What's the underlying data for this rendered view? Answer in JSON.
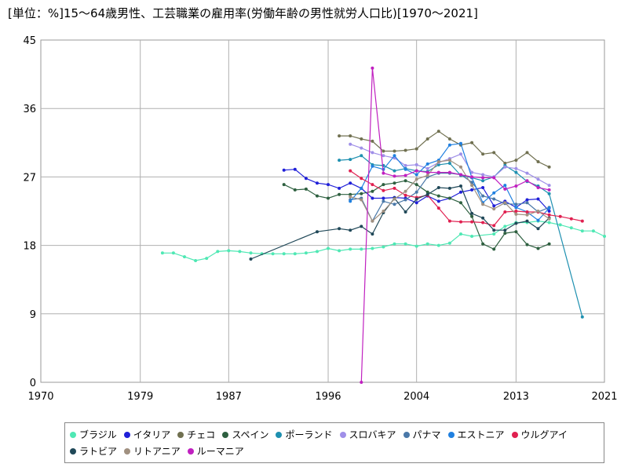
{
  "chart_data": {
    "type": "line",
    "title": "[単位：%]15～64歳男性、工芸職業の雇用率(労働年齢の男性就労人口比)[1970～2021]",
    "xlabel": "",
    "ylabel": "",
    "xlim": [
      1970,
      2021
    ],
    "ylim": [
      0,
      45
    ],
    "x_ticks": [
      "1970",
      "1979",
      "1987",
      "1996",
      "2004",
      "2013",
      "2021"
    ],
    "y_ticks": [
      "0",
      "9",
      "18",
      "27",
      "36",
      "45"
    ],
    "grid": true,
    "legend_position": "bottom",
    "series": [
      {
        "name": "ブラジル",
        "color": "#4fe8b4",
        "points": [
          [
            1981,
            17.0
          ],
          [
            1982,
            17.0
          ],
          [
            1983,
            16.5
          ],
          [
            1984,
            16.0
          ],
          [
            1985,
            16.3
          ],
          [
            1986,
            17.2
          ],
          [
            1987,
            17.3
          ],
          [
            1988,
            17.2
          ],
          [
            1989,
            17.0
          ],
          [
            1990,
            16.9
          ],
          [
            1991,
            16.9
          ],
          [
            1992,
            16.9
          ],
          [
            1993,
            16.9
          ],
          [
            1994,
            17.0
          ],
          [
            1995,
            17.2
          ],
          [
            1996,
            17.6
          ],
          [
            1997,
            17.3
          ],
          [
            1998,
            17.5
          ],
          [
            1999,
            17.5
          ],
          [
            2000,
            17.6
          ],
          [
            2001,
            17.8
          ],
          [
            2002,
            18.2
          ],
          [
            2003,
            18.2
          ],
          [
            2004,
            17.9
          ],
          [
            2005,
            18.2
          ],
          [
            2006,
            18.0
          ],
          [
            2007,
            18.3
          ],
          [
            2008,
            19.5
          ],
          [
            2009,
            19.2
          ],
          [
            2011,
            19.5
          ],
          [
            2012,
            20.5
          ],
          [
            2013,
            21.0
          ],
          [
            2014,
            21.0
          ],
          [
            2015,
            21.2
          ],
          [
            2016,
            21.0
          ],
          [
            2017,
            20.7
          ],
          [
            2018,
            20.3
          ],
          [
            2019,
            19.9
          ],
          [
            2020,
            19.9
          ],
          [
            2021,
            19.2
          ]
        ]
      },
      {
        "name": "イタリア",
        "color": "#2020d8",
        "points": [
          [
            1992,
            27.9
          ],
          [
            1993,
            28.0
          ],
          [
            1994,
            26.8
          ],
          [
            1995,
            26.2
          ],
          [
            1996,
            26.0
          ],
          [
            1997,
            25.5
          ],
          [
            1998,
            26.2
          ],
          [
            1999,
            25.5
          ],
          [
            2000,
            24.2
          ],
          [
            2001,
            24.2
          ],
          [
            2002,
            24.3
          ],
          [
            2003,
            24.2
          ],
          [
            2004,
            23.6
          ],
          [
            2005,
            24.5
          ],
          [
            2006,
            23.8
          ],
          [
            2007,
            24.2
          ],
          [
            2008,
            25.0
          ],
          [
            2009,
            25.3
          ],
          [
            2010,
            25.6
          ],
          [
            2011,
            23.2
          ],
          [
            2012,
            23.8
          ],
          [
            2013,
            23.0
          ],
          [
            2014,
            24.0
          ],
          [
            2015,
            24.1
          ],
          [
            2016,
            22.5
          ]
        ]
      },
      {
        "name": "チェコ",
        "color": "#707050",
        "points": [
          [
            1997,
            32.4
          ],
          [
            1998,
            32.4
          ],
          [
            1999,
            32.0
          ],
          [
            2000,
            31.7
          ],
          [
            2001,
            30.4
          ],
          [
            2002,
            30.4
          ],
          [
            2003,
            30.5
          ],
          [
            2004,
            30.7
          ],
          [
            2005,
            32.0
          ],
          [
            2006,
            33.0
          ],
          [
            2007,
            32.0
          ],
          [
            2008,
            31.2
          ],
          [
            2009,
            31.5
          ],
          [
            2010,
            30.0
          ],
          [
            2011,
            30.2
          ],
          [
            2012,
            28.8
          ],
          [
            2013,
            29.2
          ],
          [
            2014,
            30.2
          ],
          [
            2015,
            29.0
          ],
          [
            2016,
            28.3
          ]
        ]
      },
      {
        "name": "スペイン",
        "color": "#2e6040",
        "points": [
          [
            1992,
            26.0
          ],
          [
            1993,
            25.3
          ],
          [
            1994,
            25.4
          ],
          [
            1995,
            24.5
          ],
          [
            1996,
            24.2
          ],
          [
            1997,
            24.7
          ],
          [
            1998,
            24.7
          ],
          [
            1999,
            24.8
          ],
          [
            2000,
            25.1
          ],
          [
            2001,
            26.0
          ],
          [
            2002,
            26.2
          ],
          [
            2003,
            26.5
          ],
          [
            2004,
            26.0
          ],
          [
            2005,
            25.0
          ],
          [
            2006,
            24.5
          ],
          [
            2007,
            24.2
          ],
          [
            2008,
            23.6
          ],
          [
            2009,
            21.8
          ],
          [
            2010,
            18.2
          ],
          [
            2011,
            17.5
          ],
          [
            2012,
            19.6
          ],
          [
            2013,
            19.8
          ],
          [
            2014,
            18.1
          ],
          [
            2015,
            17.6
          ],
          [
            2016,
            18.2
          ]
        ]
      },
      {
        "name": "ポーランド",
        "color": "#1e90b0",
        "points": [
          [
            1997,
            29.2
          ],
          [
            1998,
            29.3
          ],
          [
            1999,
            29.8
          ],
          [
            2000,
            28.6
          ],
          [
            2001,
            28.5
          ],
          [
            2002,
            27.8
          ],
          [
            2003,
            28.1
          ],
          [
            2004,
            27.8
          ],
          [
            2005,
            27.7
          ],
          [
            2006,
            28.6
          ],
          [
            2007,
            28.8
          ],
          [
            2008,
            27.2
          ],
          [
            2009,
            26.9
          ],
          [
            2010,
            26.5
          ],
          [
            2011,
            27.0
          ],
          [
            2012,
            28.5
          ],
          [
            2013,
            27.6
          ],
          [
            2014,
            26.4
          ],
          [
            2015,
            25.8
          ],
          [
            2016,
            24.8
          ],
          [
            2019,
            8.6
          ]
        ]
      },
      {
        "name": "スロバキア",
        "color": "#9f8fe8",
        "points": [
          [
            1998,
            31.3
          ],
          [
            1999,
            30.8
          ],
          [
            2000,
            30.2
          ],
          [
            2001,
            29.8
          ],
          [
            2002,
            29.5
          ],
          [
            2003,
            28.5
          ],
          [
            2004,
            28.6
          ],
          [
            2005,
            28.1
          ],
          [
            2006,
            28.9
          ],
          [
            2007,
            29.4
          ],
          [
            2008,
            30.0
          ],
          [
            2009,
            27.6
          ],
          [
            2010,
            27.3
          ],
          [
            2011,
            27.0
          ],
          [
            2012,
            28.3
          ],
          [
            2013,
            28.1
          ],
          [
            2014,
            27.5
          ],
          [
            2015,
            26.7
          ],
          [
            2016,
            25.9
          ]
        ]
      },
      {
        "name": "パナマ",
        "color": "#4a78a8",
        "points": [
          [
            1998,
            24.0
          ],
          [
            1999,
            24.2
          ],
          [
            2000,
            21.2
          ],
          [
            2001,
            23.8
          ],
          [
            2002,
            23.4
          ],
          [
            2003,
            24.0
          ],
          [
            2004,
            25.0
          ],
          [
            2005,
            27.0
          ],
          [
            2006,
            27.5
          ],
          [
            2007,
            27.5
          ],
          [
            2008,
            27.3
          ],
          [
            2009,
            26.3
          ],
          [
            2010,
            24.5
          ],
          [
            2011,
            24.1
          ],
          [
            2012,
            23.5
          ],
          [
            2013,
            23.4
          ],
          [
            2014,
            23.6
          ],
          [
            2015,
            22.4
          ],
          [
            2016,
            23.0
          ]
        ]
      },
      {
        "name": "エストニア",
        "color": "#2080e0",
        "points": [
          [
            1998,
            23.8
          ],
          [
            1999,
            25.5
          ],
          [
            2000,
            28.4
          ],
          [
            2001,
            28.0
          ],
          [
            2002,
            29.8
          ],
          [
            2003,
            28.0
          ],
          [
            2004,
            27.3
          ],
          [
            2005,
            28.7
          ],
          [
            2006,
            29.2
          ],
          [
            2007,
            31.2
          ],
          [
            2008,
            31.4
          ],
          [
            2009,
            26.9
          ],
          [
            2010,
            23.6
          ],
          [
            2011,
            24.9
          ],
          [
            2012,
            25.9
          ],
          [
            2013,
            23.0
          ],
          [
            2014,
            22.4
          ],
          [
            2015,
            21.3
          ],
          [
            2016,
            22.9
          ]
        ]
      },
      {
        "name": "ウルグアイ",
        "color": "#e02050",
        "points": [
          [
            1998,
            27.8
          ],
          [
            1999,
            26.8
          ],
          [
            2000,
            26.0
          ],
          [
            2001,
            25.2
          ],
          [
            2002,
            25.5
          ],
          [
            2003,
            24.6
          ],
          [
            2004,
            24.3
          ],
          [
            2005,
            24.6
          ],
          [
            2006,
            22.9
          ],
          [
            2007,
            21.2
          ],
          [
            2008,
            21.1
          ],
          [
            2009,
            21.1
          ],
          [
            2010,
            21.0
          ],
          [
            2011,
            20.6
          ],
          [
            2012,
            22.4
          ],
          [
            2013,
            22.5
          ],
          [
            2014,
            22.4
          ],
          [
            2015,
            22.4
          ],
          [
            2016,
            22.0
          ],
          [
            2017,
            21.8
          ],
          [
            2018,
            21.5
          ],
          [
            2019,
            21.2
          ]
        ]
      },
      {
        "name": "ラトビア",
        "color": "#204858",
        "points": [
          [
            1989,
            16.2
          ],
          [
            1995,
            19.8
          ],
          [
            1997,
            20.2
          ],
          [
            1998,
            20.0
          ],
          [
            1999,
            20.5
          ],
          [
            2000,
            19.5
          ],
          [
            2001,
            22.3
          ],
          [
            2002,
            24.2
          ],
          [
            2003,
            22.4
          ],
          [
            2004,
            24.1
          ],
          [
            2005,
            24.7
          ],
          [
            2006,
            25.6
          ],
          [
            2007,
            25.5
          ],
          [
            2008,
            25.8
          ],
          [
            2009,
            22.2
          ],
          [
            2010,
            21.6
          ],
          [
            2011,
            20.0
          ],
          [
            2012,
            20.0
          ],
          [
            2013,
            20.9
          ],
          [
            2014,
            21.2
          ],
          [
            2015,
            20.2
          ],
          [
            2016,
            21.6
          ]
        ]
      },
      {
        "name": "リトアニア",
        "color": "#a09080",
        "points": [
          [
            1998,
            24.4
          ],
          [
            1999,
            24.0
          ],
          [
            2000,
            21.2
          ],
          [
            2001,
            22.5
          ],
          [
            2002,
            24.1
          ],
          [
            2003,
            25.1
          ],
          [
            2004,
            26.7
          ],
          [
            2005,
            27.2
          ],
          [
            2006,
            29.0
          ],
          [
            2007,
            29.2
          ],
          [
            2008,
            28.3
          ],
          [
            2009,
            25.9
          ],
          [
            2010,
            23.4
          ],
          [
            2011,
            22.8
          ],
          [
            2012,
            23.6
          ],
          [
            2013,
            22.1
          ],
          [
            2014,
            22.0
          ],
          [
            2015,
            22.5
          ],
          [
            2016,
            21.5
          ]
        ]
      },
      {
        "name": "ルーマニア",
        "color": "#c020c0",
        "points": [
          [
            1999,
            0.0
          ],
          [
            2000,
            41.3
          ],
          [
            2001,
            27.5
          ],
          [
            2002,
            27.1
          ],
          [
            2003,
            27.2
          ],
          [
            2004,
            27.8
          ],
          [
            2005,
            27.6
          ],
          [
            2006,
            27.6
          ],
          [
            2007,
            27.6
          ],
          [
            2008,
            27.3
          ],
          [
            2009,
            27.0
          ],
          [
            2010,
            26.9
          ],
          [
            2011,
            26.9
          ],
          [
            2012,
            25.4
          ],
          [
            2013,
            25.8
          ],
          [
            2014,
            26.5
          ],
          [
            2015,
            25.6
          ],
          [
            2016,
            25.3
          ]
        ]
      }
    ]
  }
}
